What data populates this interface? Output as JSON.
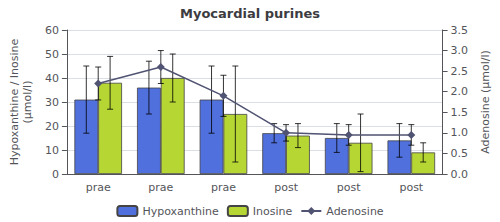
{
  "chart_data": {
    "type": "bar",
    "title": "Myocardial purines",
    "categories": [
      "prae",
      "prae",
      "prae",
      "post",
      "post",
      "post"
    ],
    "y_label": "Hypoxanthine / Inosine\n(μmol/l)",
    "y2_label": "Adenosine (μmol/l)",
    "ylim": [
      0,
      60
    ],
    "yticks": [
      0,
      10,
      20,
      30,
      40,
      50,
      60
    ],
    "y2lim": [
      0,
      3.5
    ],
    "y2ticks": [
      {
        "value": 0,
        "label": "0.0"
      },
      0.5,
      {
        "value": 1.0,
        "label": "1.0"
      },
      1.5,
      {
        "value": 2.0,
        "label": "2.0"
      },
      2.5,
      {
        "value": 3.0,
        "label": "3.0"
      },
      3.5
    ],
    "legend": "bottom",
    "series": [
      {
        "name": "Hypoxanthine",
        "type": "bar",
        "values": [
          31,
          36,
          31,
          17,
          15,
          14
        ],
        "errors": [
          14,
          11,
          14,
          4,
          6,
          7
        ]
      },
      {
        "name": "Inosine",
        "type": "bar",
        "values": [
          38,
          40,
          25,
          16,
          13,
          9
        ],
        "errors": [
          11,
          10,
          20,
          5,
          12,
          4
        ]
      },
      {
        "name": "Adenosine",
        "type": "line",
        "axis": "y2",
        "marker": "diamond",
        "values": [
          2.2,
          2.6,
          1.9,
          1.0,
          0.95,
          0.95
        ],
        "errors": [
          0.4,
          0.4,
          0.5,
          0.2,
          0.25,
          0.25
        ]
      }
    ]
  }
}
